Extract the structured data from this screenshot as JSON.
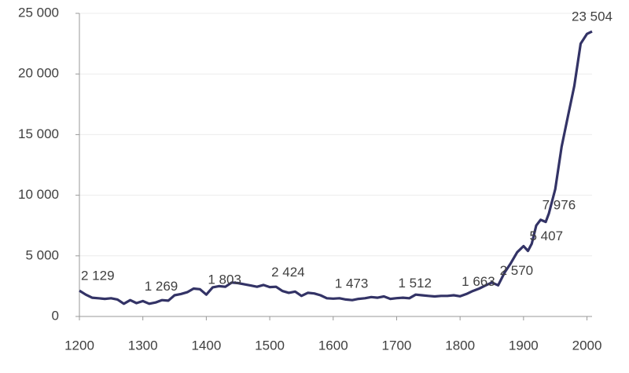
{
  "chart_data": {
    "type": "line",
    "x": [
      1200,
      1210,
      1220,
      1230,
      1240,
      1250,
      1260,
      1270,
      1280,
      1290,
      1300,
      1310,
      1320,
      1330,
      1340,
      1350,
      1360,
      1370,
      1380,
      1390,
      1400,
      1410,
      1420,
      1430,
      1440,
      1450,
      1460,
      1470,
      1480,
      1490,
      1500,
      1510,
      1520,
      1530,
      1540,
      1550,
      1560,
      1570,
      1580,
      1590,
      1600,
      1610,
      1620,
      1630,
      1640,
      1650,
      1660,
      1670,
      1680,
      1690,
      1700,
      1710,
      1720,
      1730,
      1740,
      1750,
      1760,
      1770,
      1780,
      1790,
      1800,
      1810,
      1820,
      1830,
      1840,
      1850,
      1860,
      1870,
      1880,
      1890,
      1900,
      1907,
      1913,
      1920,
      1927,
      1935,
      1940,
      1950,
      1960,
      1970,
      1980,
      1990,
      2000,
      2008
    ],
    "series": [
      {
        "color": "#333366",
        "values": [
          2129,
          1800,
          1550,
          1500,
          1450,
          1500,
          1400,
          1050,
          1350,
          1100,
          1269,
          1050,
          1150,
          1350,
          1300,
          1750,
          1850,
          2000,
          2300,
          2250,
          1803,
          2400,
          2500,
          2450,
          2800,
          2750,
          2650,
          2550,
          2450,
          2600,
          2424,
          2450,
          2100,
          1950,
          2050,
          1700,
          1950,
          1900,
          1750,
          1500,
          1473,
          1500,
          1400,
          1350,
          1450,
          1500,
          1600,
          1550,
          1650,
          1450,
          1512,
          1550,
          1500,
          1800,
          1750,
          1700,
          1650,
          1700,
          1700,
          1750,
          1663,
          1850,
          2100,
          2300,
          2550,
          2800,
          2570,
          3600,
          4400,
          5300,
          5800,
          5407,
          6000,
          7500,
          7976,
          7800,
          8500,
          10500,
          14000,
          16500,
          19000,
          22500,
          23300,
          23504
        ],
        "value_labels": [
          "2 129",
          null,
          null,
          null,
          null,
          null,
          null,
          null,
          null,
          null,
          "1 269",
          null,
          null,
          null,
          null,
          null,
          null,
          null,
          null,
          null,
          "1 803",
          null,
          null,
          null,
          null,
          null,
          null,
          null,
          null,
          null,
          "2 424",
          null,
          null,
          null,
          null,
          null,
          null,
          null,
          null,
          null,
          "1 473",
          null,
          null,
          null,
          null,
          null,
          null,
          null,
          null,
          null,
          "1 512",
          null,
          null,
          null,
          null,
          null,
          null,
          null,
          null,
          null,
          "1 663",
          null,
          null,
          null,
          null,
          null,
          "2 570",
          null,
          null,
          null,
          null,
          "5 407",
          null,
          null,
          "7 976",
          null,
          null,
          null,
          null,
          null,
          null,
          null,
          null,
          "23 504"
        ]
      }
    ],
    "xlim": [
      1200,
      2008
    ],
    "xticks": [
      1200,
      1300,
      1400,
      1500,
      1600,
      1700,
      1800,
      1900,
      2000
    ],
    "ylim": [
      0,
      25000
    ],
    "yticks": [
      0,
      {
        "value": 5000,
        "label": "5 000"
      },
      {
        "value": 10000,
        "label": "10 000"
      },
      {
        "value": 15000,
        "label": "15 000"
      },
      {
        "value": 20000,
        "label": "20 000"
      },
      {
        "value": 25000,
        "label": "25 000"
      }
    ],
    "grid": true
  }
}
